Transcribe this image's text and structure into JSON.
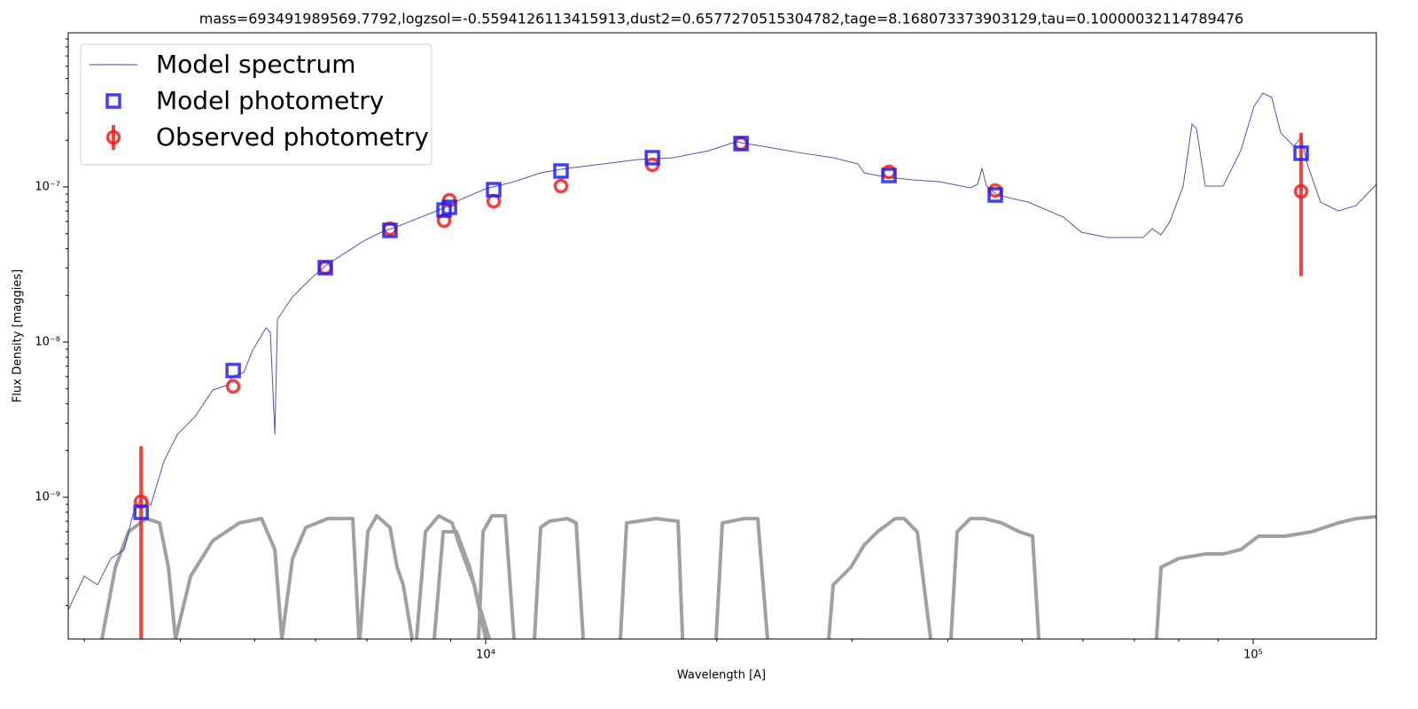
{
  "chart_data": {
    "type": "line",
    "title": "mass=693491989569.7792,logzsol=-0.5594126113415913,dust2=0.6577270515304782,tage=8.168073373903129,tau=0.10000032114789476",
    "xlabel": "Wavelength [A]",
    "ylabel": "Flux Density [maggies]",
    "xscale": "log",
    "yscale": "log",
    "xlim": [
      2858,
      144700
    ],
    "ylim": [
      1.22e-10,
      9.86e-07
    ],
    "xticks": [
      {
        "value": 10000,
        "label": "10⁴"
      },
      {
        "value": 100000,
        "label": "10⁵"
      }
    ],
    "yticks": [
      {
        "value": 1e-09,
        "label": "10⁻⁹"
      },
      {
        "value": 1e-08,
        "label": "10⁻⁸"
      },
      {
        "value": 1e-07,
        "label": "10⁻⁷"
      }
    ],
    "xminorticks": [
      3000,
      4000,
      5000,
      6000,
      7000,
      8000,
      9000,
      20000,
      30000,
      40000,
      50000,
      60000,
      70000,
      80000,
      90000
    ],
    "yminorticks": [
      2e-10,
      3e-10,
      4e-10,
      5e-10,
      6e-10,
      7e-10,
      8e-10,
      9e-10,
      2e-09,
      3e-09,
      4e-09,
      5e-09,
      6e-09,
      7e-09,
      8e-09,
      9e-09,
      2e-08,
      3e-08,
      4e-08,
      5e-08,
      6e-08,
      7e-08,
      8e-08,
      9e-08,
      2e-07,
      3e-07,
      4e-07,
      5e-07,
      6e-07,
      7e-07,
      8e-07,
      9e-07
    ],
    "legend": "upper left",
    "series": [
      {
        "name": "Model spectrum",
        "type": "line",
        "color": "#40409f",
        "x": [
          2858,
          2999,
          3121,
          3248,
          3381,
          3471,
          3565,
          3661,
          3810,
          3965,
          4181,
          4410,
          4589,
          4675,
          4840,
          4970,
          5172,
          5241,
          5312,
          5354,
          5602,
          5906,
          6180,
          6570,
          6929,
          7307,
          7706,
          8126,
          8803,
          9284,
          10000,
          10888,
          11793,
          12775,
          14204,
          15795,
          17566,
          19543,
          21170,
          22930,
          25500,
          28360,
          30550,
          31120,
          33260,
          36030,
          39020,
          42810,
          43740,
          44330,
          44920,
          46380,
          50900,
          56600,
          59700,
          64650,
          71900,
          73860,
          75850,
          77900,
          81060,
          83240,
          84350,
          86620,
          91360,
          96340,
          100270,
          102970,
          105730,
          108600,
          113000,
          115460,
          117600,
          122400,
          129100,
          136150,
          144700
        ],
        "values": [
          1.88e-10,
          3.1e-10,
          2.72e-10,
          4.03e-10,
          4.6e-10,
          7.79e-10,
          1.013e-09,
          8.88e-10,
          1.715e-09,
          2.54e-09,
          3.31e-09,
          4.91e-09,
          5.25e-09,
          5.99e-09,
          6.39e-09,
          8.88e-09,
          1.234e-08,
          1.156e-08,
          2.54e-09,
          1.408e-08,
          1.956e-08,
          2.54e-08,
          3.1e-08,
          3.78e-08,
          4.48e-08,
          5.11e-08,
          5.61e-08,
          6.23e-08,
          7.29e-08,
          8.32e-08,
          9.74e-08,
          1.082e-07,
          1.234e-07,
          1.318e-07,
          1.408e-07,
          1.503e-07,
          1.544e-07,
          1.715e-07,
          1.956e-07,
          1.832e-07,
          1.671e-07,
          1.544e-07,
          1.408e-07,
          1.234e-07,
          1.156e-07,
          1.111e-07,
          1.082e-07,
          9.87e-08,
          1.04e-07,
          1.318e-07,
          1.013e-07,
          8.88e-08,
          7.99e-08,
          6.39e-08,
          5.11e-08,
          4.72e-08,
          4.72e-08,
          5.38e-08,
          4.91e-08,
          5.99e-08,
          1.013e-07,
          2.55e-07,
          2.38e-07,
          1.013e-07,
          1.013e-07,
          1.715e-07,
          3.31e-07,
          4.03e-07,
          3.78e-07,
          2.23e-07,
          1.832e-07,
          2.09e-07,
          1.408e-07,
          7.99e-08,
          7.01e-08,
          7.59e-08,
          1.04e-07
        ]
      },
      {
        "name": "Model photometry",
        "type": "scatter",
        "marker": "square",
        "color": "#2020f0",
        "x": [
          3556,
          4688,
          6180,
          7502,
          8826,
          8968,
          10242,
          12534,
          16490,
          21510,
          33530,
          46130,
          115460
        ],
        "values": [
          8e-10,
          6.56e-09,
          3.02e-08,
          5.25e-08,
          7.1e-08,
          7.39e-08,
          9.61e-08,
          1.267e-07,
          1.544e-07,
          1.905e-07,
          1.186e-07,
          8.88e-08,
          1.65e-07
        ]
      },
      {
        "name": "Observed photometry",
        "type": "errorbar",
        "marker": "circle",
        "color": "#f02020",
        "x": [
          3556,
          4688,
          6180,
          7502,
          8826,
          8968,
          10242,
          12534,
          16490,
          21510,
          33530,
          46130,
          115460
        ],
        "values": [
          9.36e-10,
          5.18e-09,
          3.02e-08,
          5.38e-08,
          6.07e-08,
          8.21e-08,
          8.1e-08,
          1.013e-07,
          1.39e-07,
          1.905e-07,
          1.25e-07,
          9.49e-08,
          9.36e-08
        ],
        "errors": [
          [
            1.2e-09,
            1.2e-09
          ],
          null,
          null,
          null,
          null,
          null,
          null,
          null,
          null,
          null,
          null,
          null,
          [
            6.7e-08,
            1.3e-07
          ]
        ]
      }
    ],
    "filter_color": "#a0a0a0",
    "filters": [
      {
        "x": [
          3162,
          3292,
          3425,
          3612,
          3759,
          3860,
          3943
        ],
        "values": [
          1.22e-10,
          3.54e-10,
          5.99e-10,
          7.29e-10,
          6.83e-10,
          3.54e-10,
          1.22e-10
        ]
      },
      {
        "x": [
          3943,
          4126,
          4410,
          4775,
          5104,
          5312,
          5425
        ],
        "values": [
          1.22e-10,
          3.1e-10,
          5.25e-10,
          6.83e-10,
          7.29e-10,
          4.6e-10,
          1.22e-10
        ]
      },
      {
        "x": [
          5425,
          5602,
          5830,
          6230,
          6711,
          6838
        ],
        "values": [
          1.22e-10,
          4.03e-10,
          6.39e-10,
          7.29e-10,
          7.29e-10,
          1.22e-10
        ]
      },
      {
        "x": [
          6855,
          7021,
          7211,
          7504,
          7665,
          7809,
          8020
        ],
        "values": [
          1.22e-10,
          5.99e-10,
          7.59e-10,
          6.39e-10,
          3.54e-10,
          2.72e-10,
          1.22e-10
        ]
      },
      {
        "x": [
          8126,
          8346,
          8685,
          9040,
          9284,
          9661,
          10000
        ],
        "values": [
          1.22e-10,
          5.99e-10,
          7.59e-10,
          6.83e-10,
          4.6e-10,
          2.72e-10,
          1.22e-10
        ]
      },
      {
        "x": [
          8570,
          8803,
          9161,
          9532,
          9790,
          10107
        ],
        "values": [
          1.22e-10,
          5.99e-10,
          5.99e-10,
          3.54e-10,
          2.09e-10,
          1.22e-10
        ]
      },
      {
        "x": [
          9790,
          9920,
          10188,
          10603,
          10888
        ],
        "values": [
          1.22e-10,
          5.99e-10,
          7.59e-10,
          7.59e-10,
          1.22e-10
        ]
      },
      {
        "x": [
          11575,
          11793,
          12108,
          12775,
          13117,
          13397
        ],
        "values": [
          1.22e-10,
          6.39e-10,
          7.01e-10,
          7.29e-10,
          6.83e-10,
          1.22e-10
        ]
      },
      {
        "x": [
          14980,
          15260,
          16660,
          17810,
          18050
        ],
        "values": [
          1.22e-10,
          6.83e-10,
          7.29e-10,
          7.01e-10,
          1.22e-10
        ]
      },
      {
        "x": [
          19960,
          20340,
          21740,
          22620,
          23290
        ],
        "values": [
          1.22e-10,
          6.83e-10,
          7.29e-10,
          7.29e-10,
          1.22e-10
        ]
      },
      {
        "x": [
          27990,
          28360,
          29120,
          29910,
          31120,
          32390,
          34170,
          35080,
          36500,
          38000
        ],
        "values": [
          1.22e-10,
          2.72e-10,
          3.1e-10,
          3.54e-10,
          4.91e-10,
          5.99e-10,
          7.29e-10,
          7.29e-10,
          5.99e-10,
          1.22e-10
        ]
      },
      {
        "x": [
          40380,
          41140,
          42810,
          44570,
          47000,
          49570,
          51590,
          52560
        ],
        "values": [
          1.22e-10,
          5.99e-10,
          7.29e-10,
          7.29e-10,
          6.83e-10,
          5.99e-10,
          5.61e-10,
          1.22e-10
        ]
      },
      {
        "x": [
          74820,
          75850,
          79980,
          86620,
          91360,
          96340,
          101600,
          110060,
          119200,
          129100,
          136150,
          144700
        ],
        "values": [
          1.22e-10,
          3.54e-10,
          4.03e-10,
          4.31e-10,
          4.31e-10,
          4.6e-10,
          5.61e-10,
          5.61e-10,
          5.99e-10,
          6.83e-10,
          7.29e-10,
          7.49e-10
        ]
      }
    ]
  }
}
